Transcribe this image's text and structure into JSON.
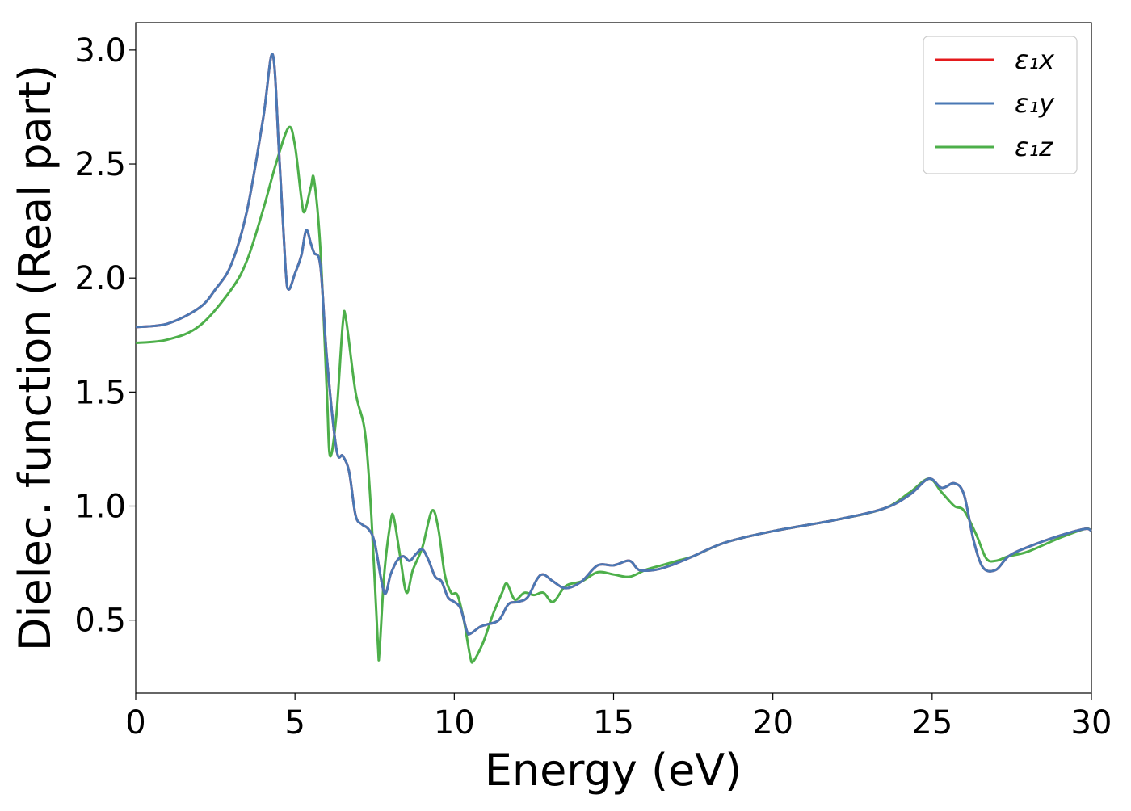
{
  "chart_data": {
    "type": "line",
    "title": "",
    "xlabel": "Energy (eV)",
    "ylabel": "Dielec. function (Real part)",
    "xlim": [
      0,
      30
    ],
    "ylim": [
      0.18,
      3.12
    ],
    "xticks": [
      0,
      5,
      10,
      15,
      20,
      25,
      30
    ],
    "yticks": [
      0.5,
      1.0,
      1.5,
      2.0,
      2.5,
      3.0
    ],
    "xtick_labels": [
      "0",
      "5",
      "10",
      "15",
      "20",
      "25",
      "30"
    ],
    "ytick_labels": [
      "0.5",
      "1.0",
      "1.5",
      "2.0",
      "2.5",
      "3.0"
    ],
    "grid": false,
    "legend": "top-right",
    "series": [
      {
        "name": "ε₁x",
        "color": "#e41a1c",
        "points": [
          [
            0,
            1.785
          ],
          [
            1,
            1.8
          ],
          [
            2,
            1.87
          ],
          [
            2.5,
            1.95
          ],
          [
            3,
            2.06
          ],
          [
            3.5,
            2.3
          ],
          [
            4,
            2.7
          ],
          [
            4.3,
            2.98
          ],
          [
            4.5,
            2.55
          ],
          [
            4.7,
            2.05
          ],
          [
            4.8,
            1.95
          ],
          [
            5.0,
            2.02
          ],
          [
            5.2,
            2.1
          ],
          [
            5.35,
            2.21
          ],
          [
            5.5,
            2.15
          ],
          [
            5.6,
            2.11
          ],
          [
            5.8,
            2.05
          ],
          [
            6.0,
            1.65
          ],
          [
            6.3,
            1.25
          ],
          [
            6.5,
            1.22
          ],
          [
            6.7,
            1.15
          ],
          [
            6.9,
            0.96
          ],
          [
            7.1,
            0.92
          ],
          [
            7.3,
            0.9
          ],
          [
            7.5,
            0.84
          ],
          [
            7.8,
            0.62
          ],
          [
            8.0,
            0.7
          ],
          [
            8.2,
            0.76
          ],
          [
            8.4,
            0.78
          ],
          [
            8.6,
            0.76
          ],
          [
            8.8,
            0.79
          ],
          [
            9.0,
            0.81
          ],
          [
            9.2,
            0.76
          ],
          [
            9.4,
            0.69
          ],
          [
            9.6,
            0.67
          ],
          [
            9.8,
            0.6
          ],
          [
            10.0,
            0.58
          ],
          [
            10.2,
            0.55
          ],
          [
            10.4,
            0.45
          ],
          [
            10.5,
            0.44
          ],
          [
            10.8,
            0.47
          ],
          [
            11.0,
            0.48
          ],
          [
            11.4,
            0.5
          ],
          [
            11.7,
            0.57
          ],
          [
            12.0,
            0.58
          ],
          [
            12.3,
            0.6
          ],
          [
            12.6,
            0.68
          ],
          [
            12.8,
            0.7
          ],
          [
            13.1,
            0.67
          ],
          [
            13.5,
            0.64
          ],
          [
            14.0,
            0.67
          ],
          [
            14.5,
            0.74
          ],
          [
            15.0,
            0.74
          ],
          [
            15.5,
            0.76
          ],
          [
            15.8,
            0.72
          ],
          [
            16.3,
            0.72
          ],
          [
            16.8,
            0.74
          ],
          [
            17.5,
            0.78
          ],
          [
            18.5,
            0.84
          ],
          [
            20,
            0.89
          ],
          [
            22,
            0.94
          ],
          [
            23.5,
            0.99
          ],
          [
            24.3,
            1.05
          ],
          [
            24.9,
            1.12
          ],
          [
            25.3,
            1.08
          ],
          [
            25.7,
            1.1
          ],
          [
            26.0,
            1.05
          ],
          [
            26.3,
            0.85
          ],
          [
            26.6,
            0.73
          ],
          [
            27.0,
            0.72
          ],
          [
            27.4,
            0.78
          ],
          [
            28.0,
            0.82
          ],
          [
            29.0,
            0.87
          ],
          [
            29.8,
            0.9
          ],
          [
            30,
            0.89
          ]
        ]
      },
      {
        "name": "ε₁y",
        "color": "#4a78b4",
        "points": [
          [
            0,
            1.785
          ],
          [
            1,
            1.8
          ],
          [
            2,
            1.87
          ],
          [
            2.5,
            1.95
          ],
          [
            3,
            2.06
          ],
          [
            3.5,
            2.3
          ],
          [
            4,
            2.7
          ],
          [
            4.3,
            2.98
          ],
          [
            4.5,
            2.55
          ],
          [
            4.7,
            2.05
          ],
          [
            4.8,
            1.95
          ],
          [
            5.0,
            2.02
          ],
          [
            5.2,
            2.1
          ],
          [
            5.35,
            2.21
          ],
          [
            5.5,
            2.15
          ],
          [
            5.6,
            2.11
          ],
          [
            5.8,
            2.05
          ],
          [
            6.0,
            1.65
          ],
          [
            6.3,
            1.25
          ],
          [
            6.5,
            1.22
          ],
          [
            6.7,
            1.15
          ],
          [
            6.9,
            0.96
          ],
          [
            7.1,
            0.92
          ],
          [
            7.3,
            0.9
          ],
          [
            7.5,
            0.84
          ],
          [
            7.8,
            0.62
          ],
          [
            8.0,
            0.7
          ],
          [
            8.2,
            0.76
          ],
          [
            8.4,
            0.78
          ],
          [
            8.6,
            0.76
          ],
          [
            8.8,
            0.79
          ],
          [
            9.0,
            0.81
          ],
          [
            9.2,
            0.76
          ],
          [
            9.4,
            0.69
          ],
          [
            9.6,
            0.67
          ],
          [
            9.8,
            0.6
          ],
          [
            10.0,
            0.58
          ],
          [
            10.2,
            0.55
          ],
          [
            10.4,
            0.45
          ],
          [
            10.5,
            0.44
          ],
          [
            10.8,
            0.47
          ],
          [
            11.0,
            0.48
          ],
          [
            11.4,
            0.5
          ],
          [
            11.7,
            0.57
          ],
          [
            12.0,
            0.58
          ],
          [
            12.3,
            0.6
          ],
          [
            12.6,
            0.68
          ],
          [
            12.8,
            0.7
          ],
          [
            13.1,
            0.67
          ],
          [
            13.5,
            0.64
          ],
          [
            14.0,
            0.67
          ],
          [
            14.5,
            0.74
          ],
          [
            15.0,
            0.74
          ],
          [
            15.5,
            0.76
          ],
          [
            15.8,
            0.72
          ],
          [
            16.3,
            0.72
          ],
          [
            16.8,
            0.74
          ],
          [
            17.5,
            0.78
          ],
          [
            18.5,
            0.84
          ],
          [
            20,
            0.89
          ],
          [
            22,
            0.94
          ],
          [
            23.5,
            0.99
          ],
          [
            24.3,
            1.05
          ],
          [
            24.9,
            1.12
          ],
          [
            25.3,
            1.08
          ],
          [
            25.7,
            1.1
          ],
          [
            26.0,
            1.05
          ],
          [
            26.3,
            0.85
          ],
          [
            26.6,
            0.73
          ],
          [
            27.0,
            0.72
          ],
          [
            27.4,
            0.78
          ],
          [
            28.0,
            0.82
          ],
          [
            29.0,
            0.87
          ],
          [
            29.8,
            0.9
          ],
          [
            30,
            0.89
          ]
        ]
      },
      {
        "name": "ε₁z",
        "color": "#4daf4a",
        "points": [
          [
            0,
            1.715
          ],
          [
            1,
            1.73
          ],
          [
            2,
            1.79
          ],
          [
            3,
            1.95
          ],
          [
            3.5,
            2.08
          ],
          [
            4.0,
            2.3
          ],
          [
            4.4,
            2.5
          ],
          [
            4.8,
            2.66
          ],
          [
            5.0,
            2.58
          ],
          [
            5.2,
            2.35
          ],
          [
            5.3,
            2.29
          ],
          [
            5.5,
            2.4
          ],
          [
            5.6,
            2.43
          ],
          [
            5.8,
            2.12
          ],
          [
            6.0,
            1.5
          ],
          [
            6.1,
            1.22
          ],
          [
            6.3,
            1.4
          ],
          [
            6.5,
            1.8
          ],
          [
            6.6,
            1.82
          ],
          [
            6.9,
            1.5
          ],
          [
            7.2,
            1.32
          ],
          [
            7.4,
            0.95
          ],
          [
            7.6,
            0.4
          ],
          [
            7.65,
            0.36
          ],
          [
            7.8,
            0.7
          ],
          [
            8.0,
            0.93
          ],
          [
            8.1,
            0.95
          ],
          [
            8.3,
            0.78
          ],
          [
            8.5,
            0.62
          ],
          [
            8.7,
            0.72
          ],
          [
            9.0,
            0.82
          ],
          [
            9.3,
            0.98
          ],
          [
            9.5,
            0.9
          ],
          [
            9.7,
            0.7
          ],
          [
            9.9,
            0.62
          ],
          [
            10.1,
            0.61
          ],
          [
            10.3,
            0.5
          ],
          [
            10.5,
            0.34
          ],
          [
            10.6,
            0.32
          ],
          [
            10.9,
            0.4
          ],
          [
            11.2,
            0.52
          ],
          [
            11.5,
            0.62
          ],
          [
            11.65,
            0.66
          ],
          [
            11.9,
            0.59
          ],
          [
            12.2,
            0.62
          ],
          [
            12.5,
            0.61
          ],
          [
            12.8,
            0.62
          ],
          [
            13.1,
            0.58
          ],
          [
            13.5,
            0.65
          ],
          [
            14.0,
            0.67
          ],
          [
            14.5,
            0.71
          ],
          [
            15.0,
            0.7
          ],
          [
            15.5,
            0.69
          ],
          [
            16.0,
            0.72
          ],
          [
            16.5,
            0.74
          ],
          [
            17.0,
            0.76
          ],
          [
            17.5,
            0.78
          ],
          [
            18.5,
            0.84
          ],
          [
            20,
            0.89
          ],
          [
            22,
            0.94
          ],
          [
            23.5,
            0.99
          ],
          [
            24.3,
            1.06
          ],
          [
            24.9,
            1.12
          ],
          [
            25.3,
            1.06
          ],
          [
            25.7,
            1.0
          ],
          [
            26.0,
            0.98
          ],
          [
            26.4,
            0.87
          ],
          [
            26.7,
            0.77
          ],
          [
            27.0,
            0.76
          ],
          [
            27.4,
            0.78
          ],
          [
            28.0,
            0.8
          ],
          [
            29.0,
            0.86
          ],
          [
            29.8,
            0.9
          ],
          [
            30,
            0.89
          ]
        ]
      }
    ]
  }
}
